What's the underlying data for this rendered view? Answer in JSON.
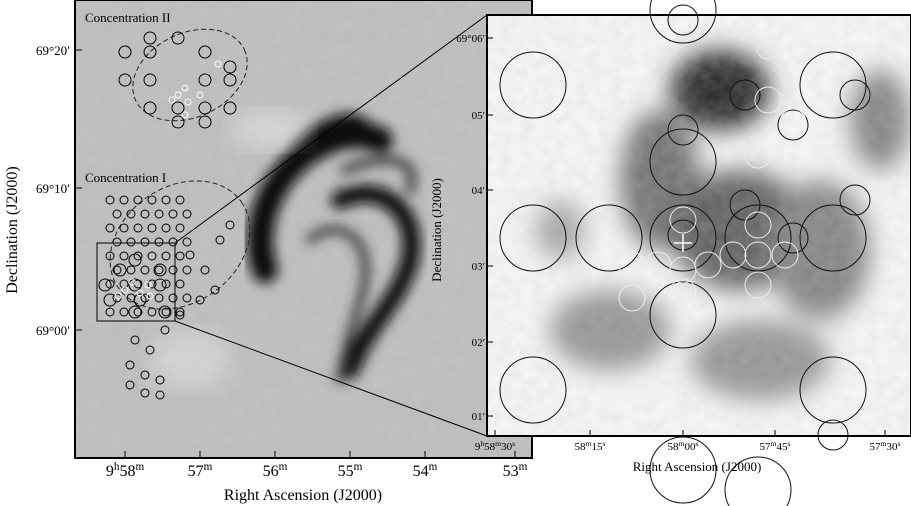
{
  "left_panel": {
    "annotations": [
      "Concentration II",
      "Concentration I"
    ],
    "y_axis_label": "Declination (J2000)",
    "x_axis_label": "Right Ascension (J2000)",
    "yticks": [
      [
        "69°20′"
      ],
      [
        "69°10′"
      ],
      [
        "69°00′"
      ]
    ],
    "xticks": [
      [
        "9",
        "h",
        "58",
        "m"
      ],
      [
        "57",
        "m"
      ],
      [
        "56",
        "m"
      ],
      [
        "55",
        "m"
      ],
      [
        "54",
        "m"
      ],
      [
        "53",
        "m"
      ]
    ]
  },
  "right_panel": {
    "y_axis_label": "Declination (J2000)",
    "x_axis_label": "Right Ascension (J2000)",
    "yticks": [
      [
        "69°06′"
      ],
      [
        "05′"
      ],
      [
        "04′"
      ],
      [
        "03′"
      ],
      [
        "02′"
      ],
      [
        "01′"
      ]
    ],
    "xticks": [
      [
        "9",
        "h",
        "58",
        "m",
        "30",
        "s"
      ],
      [
        "58",
        "m",
        "15",
        "s"
      ],
      [
        "58",
        "m",
        "00",
        "s"
      ],
      [
        "57",
        "m",
        "45",
        "s"
      ],
      [
        "57",
        "m",
        "30",
        "s"
      ]
    ]
  }
}
